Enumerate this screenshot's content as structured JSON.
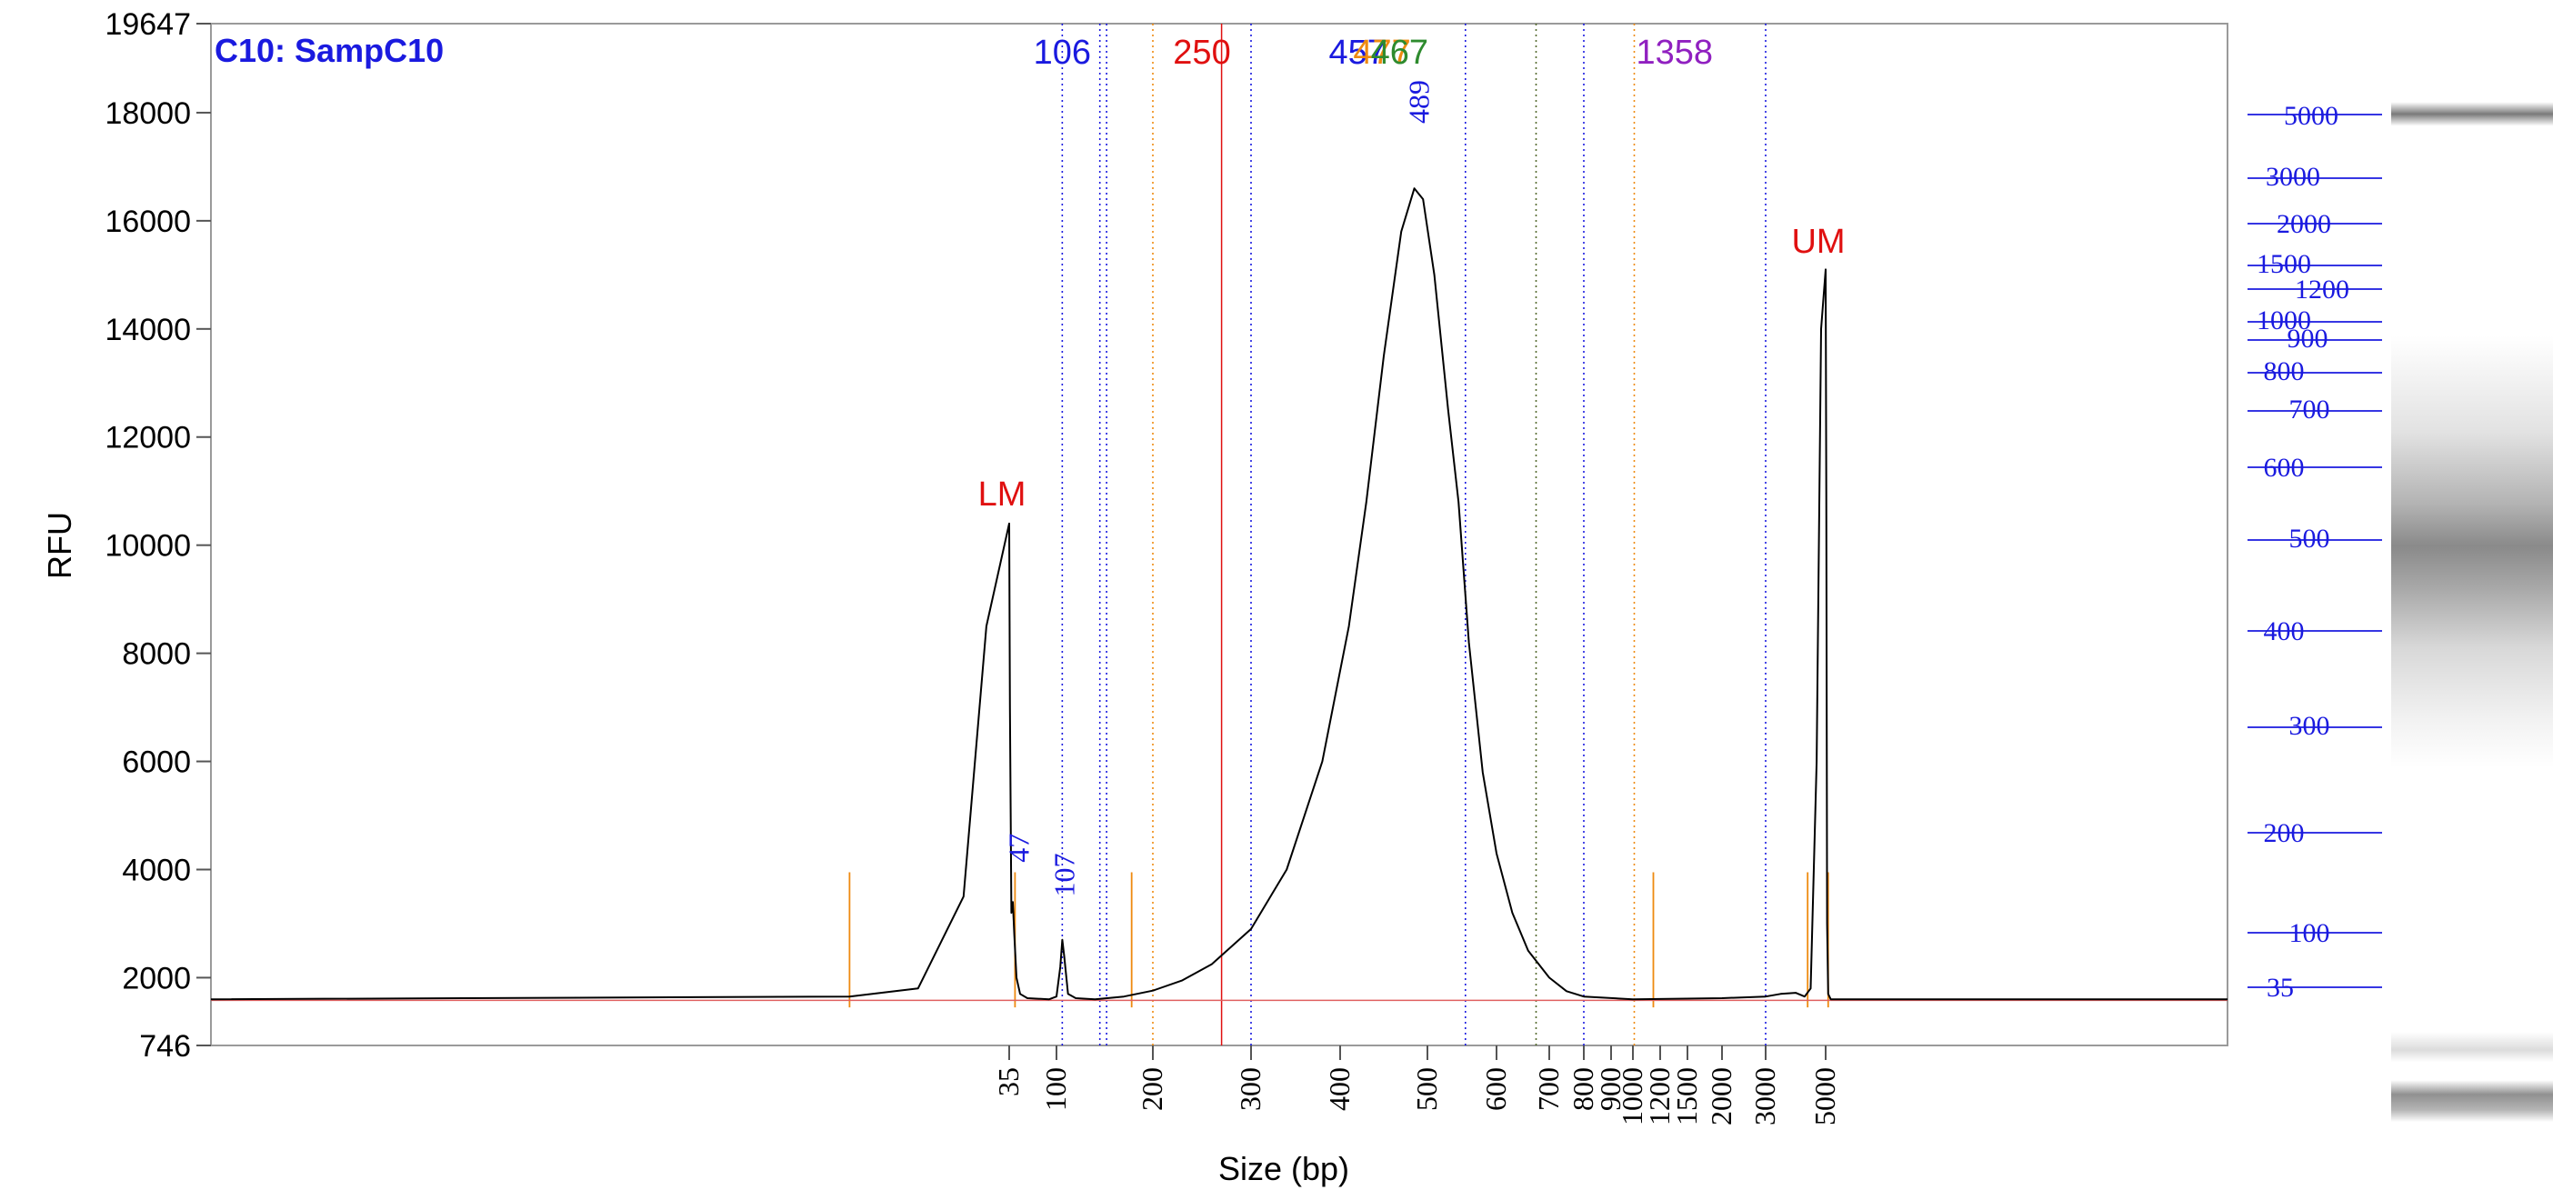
{
  "chart_data": {
    "type": "line",
    "title": "C10: SampC10",
    "xlabel": "Size (bp)",
    "ylabel": "RFU",
    "ylim": [
      746,
      19647
    ],
    "y_ticks": [
      19647,
      18000,
      16000,
      14000,
      12000,
      10000,
      8000,
      6000,
      4000,
      2000,
      746
    ],
    "x_ticks": [
      35,
      100,
      200,
      300,
      400,
      500,
      600,
      700,
      800,
      900,
      1000,
      1200,
      1500,
      2000,
      3000,
      5000
    ],
    "marker_labels": [
      {
        "text": "LM",
        "size_bp": 35
      },
      {
        "text": "UM",
        "size_bp": 5000
      }
    ],
    "top_labels": [
      {
        "text": "106",
        "size_bp": 106,
        "color": "#1a1adf"
      },
      {
        "text": "250",
        "size_bp": 250,
        "color": "#e01010"
      },
      {
        "text": "457",
        "size_bp": 420,
        "color": "#1a1adf"
      },
      {
        "text": "477",
        "size_bp": 448,
        "color": "#ee8a10"
      },
      {
        "text": "467",
        "size_bp": 468,
        "color": "#2e8b2e"
      },
      {
        "text": "1358",
        "size_bp": 1358,
        "color": "#9020c0"
      }
    ],
    "peak_labels": [
      {
        "text": "47",
        "size_bp": 47,
        "rfu": 4400
      },
      {
        "text": "107",
        "size_bp": 107,
        "rfu": 3900
      },
      {
        "text": "489",
        "size_bp": 489,
        "rfu": 18200
      }
    ],
    "series": [
      {
        "values": [
          [
            0,
            1600
          ],
          [
            28,
            1650
          ],
          [
            31,
            1800
          ],
          [
            33,
            3500
          ],
          [
            34,
            8500
          ],
          [
            35,
            10400
          ],
          [
            36,
            7000
          ],
          [
            38,
            3200
          ],
          [
            40,
            3400
          ],
          [
            42,
            2800
          ],
          [
            45,
            2000
          ],
          [
            50,
            1700
          ],
          [
            60,
            1620
          ],
          [
            90,
            1600
          ],
          [
            100,
            1650
          ],
          [
            104,
            2200
          ],
          [
            106,
            2700
          ],
          [
            108,
            2400
          ],
          [
            112,
            1700
          ],
          [
            120,
            1620
          ],
          [
            140,
            1600
          ],
          [
            170,
            1650
          ],
          [
            200,
            1760
          ],
          [
            230,
            1950
          ],
          [
            260,
            2250
          ],
          [
            300,
            2900
          ],
          [
            340,
            4000
          ],
          [
            380,
            6000
          ],
          [
            410,
            8500
          ],
          [
            430,
            10800
          ],
          [
            450,
            13500
          ],
          [
            470,
            15800
          ],
          [
            485,
            16600
          ],
          [
            495,
            16400
          ],
          [
            510,
            15000
          ],
          [
            530,
            12500
          ],
          [
            545,
            10800
          ],
          [
            560,
            8200
          ],
          [
            580,
            5800
          ],
          [
            600,
            4300
          ],
          [
            630,
            3200
          ],
          [
            660,
            2500
          ],
          [
            700,
            2000
          ],
          [
            750,
            1750
          ],
          [
            800,
            1650
          ],
          [
            1000,
            1600
          ],
          [
            2000,
            1620
          ],
          [
            3000,
            1650
          ],
          [
            3500,
            1700
          ],
          [
            4000,
            1720
          ],
          [
            4300,
            1650
          ],
          [
            4500,
            1800
          ],
          [
            4700,
            6000
          ],
          [
            4850,
            14000
          ],
          [
            5000,
            15100
          ],
          [
            5150,
            11000
          ],
          [
            5350,
            3000
          ],
          [
            5600,
            1700
          ],
          [
            6200,
            1600
          ],
          [
            99999,
            1600
          ]
        ]
      }
    ],
    "gel_ladder": [
      5000,
      3000,
      2000,
      1500,
      1200,
      1000,
      900,
      800,
      700,
      600,
      500,
      400,
      300,
      200,
      100,
      35
    ],
    "colors": {
      "trace": "#000000",
      "title": "#1a1adf",
      "ladder": "#1a1adf",
      "marker": "#e01010",
      "cutoff": "#ee8a10",
      "purple": "#9020c0",
      "green": "#2e8b2e"
    }
  }
}
